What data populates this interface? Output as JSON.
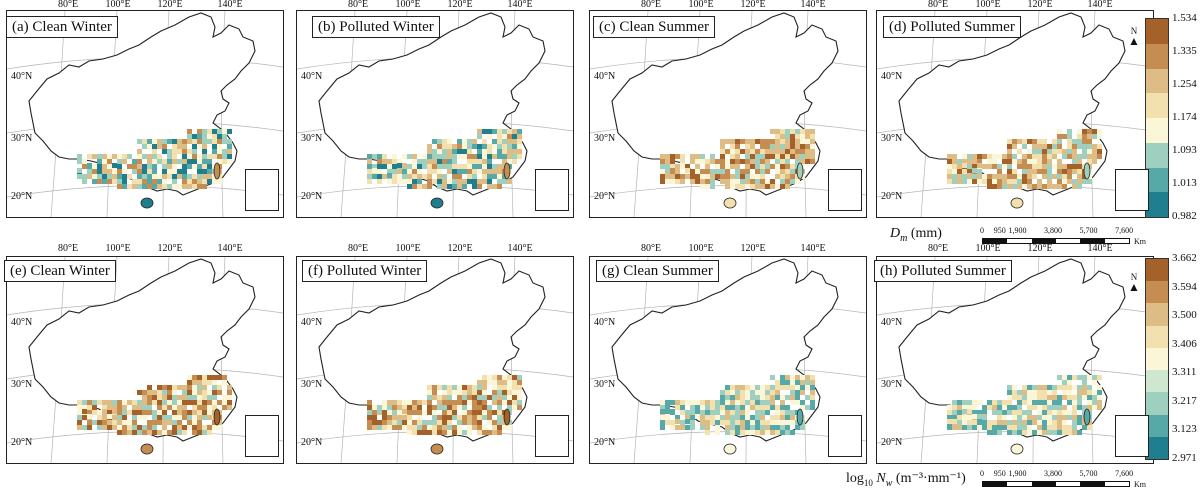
{
  "figure": {
    "row_top": {
      "panels": [
        "(a) Clean Winter",
        "(b) Polluted Winter",
        "(c) Clean Summer",
        "(d) Polluted Summer"
      ],
      "colorbar": {
        "ticks": [
          "1.534",
          "1.335",
          "1.254",
          "1.174",
          "1.093",
          "1.013",
          "0.982"
        ],
        "colors": [
          "#a4622a",
          "#c58d52",
          "#ddbd85",
          "#f2e1ae",
          "#fbf6d8",
          "#9fcfbe",
          "#57a9a7",
          "#1f7f8f"
        ],
        "title_var": "D",
        "title_sub": "m",
        "title_unit": "(mm)"
      }
    },
    "row_bottom": {
      "panels": [
        "(e) Clean Winter",
        "(f) Polluted Winter",
        "(g) Clean Summer",
        "(h) Polluted Summer"
      ],
      "colorbar": {
        "ticks": [
          "3.662",
          "3.594",
          "3.500",
          "3.406",
          "3.311",
          "3.217",
          "3.123",
          "2.971"
        ],
        "colors": [
          "#a4622a",
          "#c58d52",
          "#ddbd85",
          "#f2e1ae",
          "#fbf6d8",
          "#cfe6cf",
          "#9fcfbe",
          "#57a9a7",
          "#1f7f8f"
        ],
        "title_prefix": "log",
        "title_prefix_sub": "10",
        "title_var": "N",
        "title_sub": "w",
        "title_unit": "(m⁻³·mm⁻¹)"
      }
    },
    "lon_labels": [
      "80°E",
      "100°E",
      "120°E",
      "140°E"
    ],
    "lat_labels": [
      "40°N",
      "30°N",
      "20°N"
    ],
    "north_arrow": "N",
    "scale_bar": {
      "labels": [
        "0",
        "950",
        "1,900",
        "3,800",
        "5,700",
        "7,600"
      ],
      "unit": "Km"
    },
    "palette": {
      "dark_brown": "#a4622a",
      "brown": "#c58d52",
      "tan": "#ddbd85",
      "cream": "#f2e1ae",
      "light": "#fbf6d8",
      "mint": "#9fcfbe",
      "teal": "#57a9a7",
      "deep_teal": "#1f7f8f"
    }
  }
}
